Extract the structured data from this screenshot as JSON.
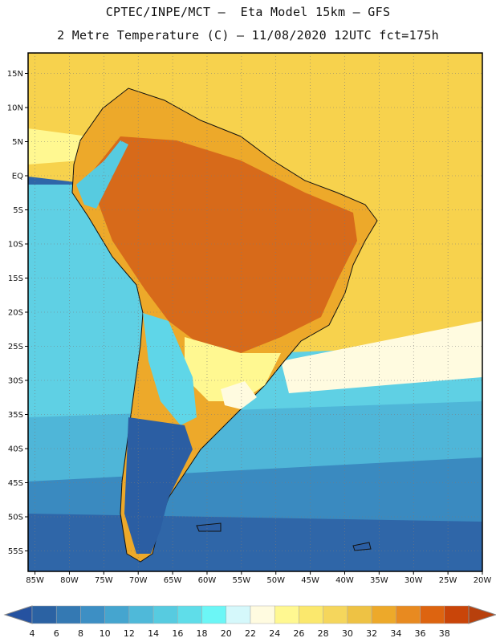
{
  "title": {
    "line1": "CPTEC/INPE/MCT –  Eta Model 15km – GFS",
    "line2": "2 Metre Temperature (C) – 11/08/2020 12UTC fct=175h"
  },
  "axes": {
    "lat_labels": [
      "15N",
      "10N",
      "5N",
      "EQ",
      "5S",
      "10S",
      "15S",
      "20S",
      "25S",
      "30S",
      "35S",
      "40S",
      "45S",
      "50S",
      "55S"
    ],
    "lat_values": [
      15,
      10,
      5,
      0,
      -5,
      -10,
      -15,
      -20,
      -25,
      -30,
      -35,
      -40,
      -45,
      -50,
      -55
    ],
    "lon_labels": [
      "85W",
      "80W",
      "75W",
      "70W",
      "65W",
      "60W",
      "55W",
      "50W",
      "45W",
      "40W",
      "35W",
      "30W",
      "25W",
      "20W"
    ],
    "lon_values": [
      -85,
      -80,
      -75,
      -70,
      -65,
      -60,
      -55,
      -50,
      -45,
      -40,
      -35,
      -30,
      -25,
      -20
    ],
    "lat_range": [
      -58,
      18
    ],
    "lon_range": [
      -86,
      -20
    ]
  },
  "colorbar": {
    "labels": [
      "4",
      "6",
      "8",
      "10",
      "12",
      "14",
      "16",
      "18",
      "20",
      "22",
      "24",
      "26",
      "28",
      "30",
      "32",
      "34",
      "36",
      "38"
    ],
    "colors": [
      "#2b62a3",
      "#3479b3",
      "#3d8fc4",
      "#45a5cf",
      "#4fb9d9",
      "#57cbe0",
      "#5fdde9",
      "#6cf6f6",
      "#d5f8fb",
      "#fffbe0",
      "#fff891",
      "#fbe86d",
      "#f5d65c",
      "#eec244",
      "#eda92a",
      "#e88a20",
      "#dd6410",
      "#c94509"
    ],
    "under_color": "#2552a0",
    "over_color": "#b8400c"
  },
  "regions": [
    {
      "name": "ocean-cold-south",
      "color": "#2f66a8"
    },
    {
      "name": "ocean-cool",
      "color": "#3a8ac0"
    },
    {
      "name": "ocean-mild",
      "color": "#4fb6d8"
    },
    {
      "name": "ocean-warm-pacific",
      "color": "#5fd0e4"
    },
    {
      "name": "ocean-tropical",
      "color": "#f7d24d"
    },
    {
      "name": "land-hot-interior",
      "color": "#d76a1a"
    },
    {
      "name": "land-warm",
      "color": "#eda92a"
    },
    {
      "name": "patagonia-cold",
      "color": "#2b5ea3"
    },
    {
      "name": "andes-cold",
      "color": "#5fd6e8"
    }
  ]
}
